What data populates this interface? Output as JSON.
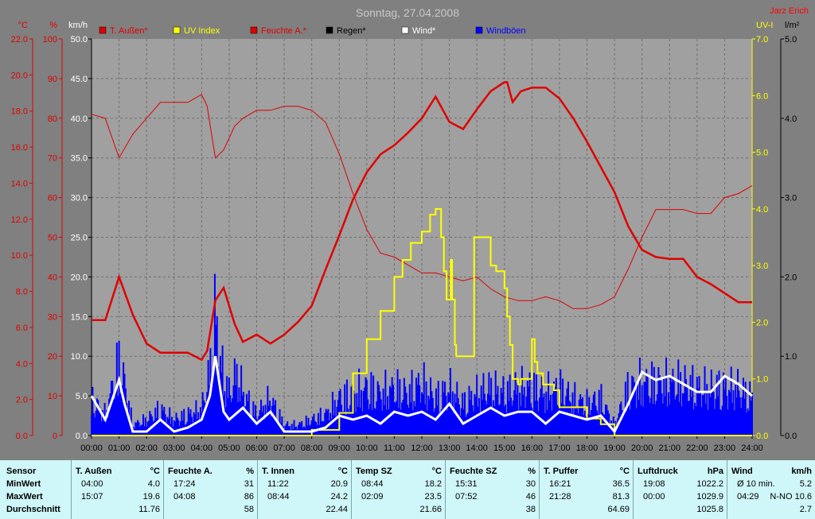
{
  "chart_data": {
    "type": "line",
    "title": "Sonntag, 27.04.2008",
    "author": "Jarz Erich",
    "x_ticks": [
      "00:00",
      "01:00",
      "02:00",
      "03:00",
      "04:00",
      "05:00",
      "06:00",
      "07:00",
      "08:00",
      "09:00",
      "10:00",
      "11:00",
      "12:00",
      "13:00",
      "14:00",
      "15:00",
      "16:00",
      "17:00",
      "18:00",
      "19:00",
      "20:00",
      "21:00",
      "22:00",
      "23:00",
      "24:00"
    ],
    "axes": {
      "temp": {
        "unit": "°C",
        "ticks": [
          "0.0",
          "2.0",
          "4.0",
          "6.0",
          "8.0",
          "10.0",
          "12.0",
          "14.0",
          "16.0",
          "18.0",
          "20.0",
          "22.0"
        ],
        "ylim": [
          0,
          22
        ],
        "color": "#e00000"
      },
      "hum": {
        "unit": "%",
        "ticks": [
          "0",
          "10",
          "20",
          "30",
          "40",
          "50",
          "60",
          "70",
          "80",
          "90",
          "100"
        ],
        "ylim": [
          0,
          100
        ],
        "color": "#e00000"
      },
      "wind": {
        "unit": "km/h",
        "ticks": [
          "0.0",
          "5.0",
          "10.0",
          "15.0",
          "20.0",
          "25.0",
          "30.0",
          "35.0",
          "40.0",
          "45.0",
          "50.0"
        ],
        "ylim": [
          0,
          50
        ],
        "color": "#ffffff"
      },
      "uv": {
        "unit": "UV-I",
        "ticks": [
          "0.0",
          "1.0",
          "2.0",
          "3.0",
          "4.0",
          "5.0",
          "6.0",
          "7.0"
        ],
        "ylim": [
          0,
          7
        ],
        "color": "#ffff00"
      },
      "rain": {
        "unit": "l/m²",
        "ticks": [
          "0.0",
          "1.0",
          "2.0",
          "3.0",
          "4.0",
          "5.0"
        ],
        "ylim": [
          0,
          5
        ],
        "color": "#000000"
      }
    },
    "legend": [
      {
        "name": "T. Außen*",
        "color": "#e00000"
      },
      {
        "name": "UV Index",
        "color": "#ffff00"
      },
      {
        "name": "Feuchte A.*",
        "color": "#e00000"
      },
      {
        "name": "Regen*",
        "color": "#000000"
      },
      {
        "name": "Wind*",
        "color": "#ffffff"
      },
      {
        "name": "Windböen",
        "color": "#0000ff"
      }
    ],
    "series": {
      "temp": {
        "x": [
          0,
          0.5,
          1,
          1.5,
          2,
          2.5,
          3,
          3.5,
          4,
          4.2,
          4.5,
          4.8,
          5.2,
          5.5,
          6,
          6.5,
          7,
          7.5,
          8,
          8.5,
          9,
          9.5,
          10,
          10.5,
          11,
          11.5,
          12,
          12.5,
          13,
          13.5,
          14,
          14.5,
          15,
          15.1,
          15.3,
          15.6,
          16,
          16.5,
          17,
          17.5,
          18,
          18.5,
          19,
          19.5,
          20,
          20.5,
          21,
          21.5,
          22,
          22.5,
          23,
          23.5,
          24
        ],
        "y": [
          6.4,
          6.4,
          8.8,
          6.7,
          5.1,
          4.6,
          4.6,
          4.6,
          4.2,
          4.7,
          7.5,
          8.2,
          6.2,
          5.2,
          5.6,
          5.1,
          5.6,
          6.3,
          7.2,
          9.2,
          11.1,
          13.1,
          14.6,
          15.6,
          16.1,
          16.8,
          17.6,
          18.8,
          17.4,
          17.0,
          18.1,
          19.1,
          19.6,
          19.6,
          18.5,
          19.1,
          19.3,
          19.3,
          18.7,
          17.6,
          16.3,
          14.9,
          13.5,
          11.6,
          10.3,
          9.9,
          9.8,
          9.8,
          8.8,
          8.4,
          7.9,
          7.4,
          7.4
        ]
      },
      "hum": {
        "x": [
          0,
          0.5,
          1,
          1.5,
          2,
          2.5,
          3,
          3.5,
          4,
          4.2,
          4.5,
          4.8,
          5.2,
          5.5,
          6,
          6.5,
          7,
          7.5,
          8,
          8.5,
          9,
          9.5,
          10,
          10.5,
          11,
          11.5,
          12,
          12.5,
          13,
          13.5,
          14,
          14.5,
          15,
          15.5,
          16,
          16.5,
          17,
          17.5,
          18,
          18.5,
          19,
          19.5,
          20,
          20.5,
          21,
          21.5,
          22,
          22.5,
          23,
          23.5,
          24
        ],
        "y": [
          81,
          80,
          70,
          76,
          80,
          84,
          84,
          84,
          86,
          83,
          70,
          72,
          78,
          80,
          82,
          82,
          83,
          83,
          82,
          79,
          71,
          61,
          52,
          46,
          45,
          43,
          41,
          41,
          40,
          39,
          40,
          37,
          35,
          34,
          34,
          35,
          34,
          32,
          32,
          33,
          35,
          42,
          50,
          57,
          57,
          57,
          56,
          56,
          60,
          61,
          63
        ]
      },
      "uv": {
        "x": [
          0,
          8,
          9,
          9.5,
          10,
          10.5,
          11,
          11.3,
          11.6,
          12,
          12.3,
          12.5,
          12.7,
          12.8,
          12.9,
          13,
          13.05,
          13.1,
          13.2,
          13.25,
          13.5,
          13.8,
          13.9,
          14,
          14.5,
          14.7,
          15,
          15.1,
          15.2,
          15.3,
          15.5,
          15.6,
          16,
          16.1,
          16.2,
          16.4,
          16.8,
          17,
          18,
          18.5,
          19,
          24
        ],
        "y": [
          0,
          0.1,
          0.4,
          1.1,
          1.7,
          2.2,
          2.8,
          3.1,
          3.4,
          3.6,
          3.9,
          4.0,
          3.5,
          2.9,
          2.4,
          2.4,
          3.1,
          2.4,
          1.6,
          1.4,
          1.4,
          1.4,
          3.5,
          3.5,
          3.0,
          2.9,
          2.6,
          2.1,
          1.6,
          1.0,
          0.9,
          1.0,
          1.7,
          1.3,
          1.1,
          0.9,
          0.8,
          0.5,
          0.3,
          0.2,
          0,
          0
        ]
      },
      "wind": {
        "x": [
          0,
          0.5,
          1,
          1.2,
          1.5,
          2,
          2.5,
          3,
          3.5,
          4,
          4.3,
          4.5,
          4.8,
          5,
          5.5,
          6,
          6.5,
          7,
          7.5,
          8,
          8.5,
          9,
          9.5,
          10,
          10.5,
          11,
          11.5,
          12,
          12.5,
          13,
          13.5,
          14,
          14.5,
          15,
          15.5,
          16,
          16.5,
          17,
          17.5,
          18,
          18.5,
          19,
          19.5,
          20,
          20.5,
          21,
          21.5,
          22,
          22.5,
          23,
          23.5,
          24
        ],
        "y": [
          5.0,
          2.0,
          7.0,
          4.0,
          0.5,
          0.5,
          2.0,
          0.5,
          1.0,
          2.0,
          5.0,
          10.0,
          3.0,
          2.0,
          3.5,
          1.5,
          3.0,
          0.5,
          0.5,
          0.5,
          1.0,
          2.5,
          2.0,
          2.5,
          1.5,
          3.0,
          2.5,
          3.0,
          2.0,
          4.0,
          1.5,
          2.5,
          3.5,
          2.5,
          3.0,
          3.0,
          1.5,
          3.0,
          2.5,
          2.0,
          2.5,
          0.5,
          4.0,
          8.0,
          7.0,
          7.5,
          6.5,
          5.5,
          5.5,
          7.5,
          6.5,
          5.0
        ]
      },
      "gust_max": {
        "x": [
          0,
          0.5,
          1,
          1.2,
          1.5,
          2,
          2.5,
          3,
          3.5,
          4,
          4.3,
          4.5,
          4.7,
          5,
          5.3,
          5.5,
          6,
          6.5,
          7,
          7.5,
          8,
          8.5,
          9,
          9.5,
          10,
          10.5,
          11,
          11.5,
          12,
          12.5,
          13,
          13.5,
          14,
          14.5,
          15,
          15.5,
          16,
          16.5,
          17,
          17.5,
          18,
          18.5,
          19,
          19.5,
          20,
          20.5,
          21,
          21.5,
          22,
          22.5,
          23,
          23.5,
          24
        ],
        "y": [
          7,
          4,
          14,
          10,
          2,
          3,
          5,
          3,
          4,
          5,
          12,
          23,
          13,
          8,
          12,
          8,
          4,
          7,
          2,
          2,
          3,
          4,
          7,
          8,
          9,
          8,
          9,
          8,
          10,
          7,
          9,
          6,
          8,
          9,
          8,
          9,
          9,
          8,
          9,
          7,
          6,
          7,
          2,
          9,
          10,
          10,
          10,
          10,
          9,
          9,
          9,
          9,
          7
        ]
      }
    }
  },
  "stats": {
    "row_labels": [
      "Sensor",
      "MinWert",
      "MaxWert",
      "Durchschnitt"
    ],
    "columns": [
      {
        "name": "T. Außen",
        "unit": "°C",
        "min_time": "04:00",
        "min": "4.0",
        "max_time": "15:07",
        "max": "19.6",
        "avg": "11.76"
      },
      {
        "name": "Feuchte A.",
        "unit": "%",
        "min_time": "17:24",
        "min": "31",
        "max_time": "04:08",
        "max": "86",
        "avg": "58"
      },
      {
        "name": "T. Innen",
        "unit": "°C",
        "min_time": "11:22",
        "min": "20.9",
        "max_time": "08:44",
        "max": "24.2",
        "avg": "22.44"
      },
      {
        "name": "Temp SZ",
        "unit": "°C",
        "min_time": "08:44",
        "min": "18.2",
        "max_time": "02:09",
        "max": "23.5",
        "avg": "21.66"
      },
      {
        "name": "Feuchte SZ",
        "unit": "%",
        "min_time": "15:31",
        "min": "30",
        "max_time": "07:52",
        "max": "46",
        "avg": "38"
      },
      {
        "name": "T. Puffer",
        "unit": "°C",
        "min_time": "16:21",
        "min": "36.5",
        "max_time": "21:28",
        "max": "81.3",
        "avg": "64.69"
      },
      {
        "name": "Luftdruck",
        "unit": "hPa",
        "min_time": "19:08",
        "min": "1022.2",
        "max_time": "00:00",
        "max": "1029.9",
        "avg": "1025.8"
      },
      {
        "name": "Wind",
        "unit": "km/h",
        "min_time": "Ø 10 min.",
        "min": "5.2",
        "max_time": "04:29",
        "max": "N-NO 10.6",
        "avg": "2.7"
      }
    ]
  }
}
